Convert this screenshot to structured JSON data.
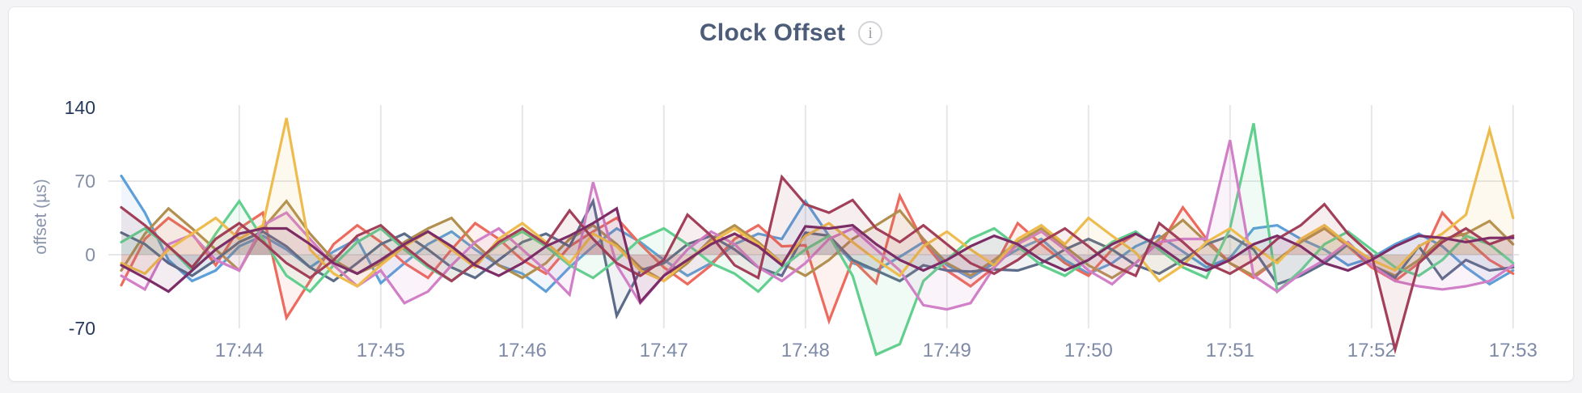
{
  "page": {
    "background": "#f4f4f6",
    "card_background": "#ffffff",
    "card_border": "#e7e7e9"
  },
  "header": {
    "title": "Clock Offset",
    "info_icon_glyph": "i"
  },
  "colors": {
    "title": "#4d5d79",
    "gridline": "#e7e7ea",
    "x_tick_label": "#7e8aa6",
    "y_tick_label": "#848fa6",
    "y_tick_label_emphasis": "#26395a",
    "axis_title": "#8a94aa",
    "info_icon_border": "#d2d4d8",
    "info_icon_text": "#9aa0a8"
  },
  "chart_data": {
    "type": "line",
    "title": "Clock Offset",
    "xlabel": "",
    "ylabel": "offset (µs)",
    "ylim": [
      -70,
      140
    ],
    "grid": true,
    "legend_position": "none",
    "x_start_time": "17:43:10",
    "x_step_seconds": 10,
    "x_ticks": [
      {
        "t": 50,
        "label": "17:44"
      },
      {
        "t": 110,
        "label": "17:45"
      },
      {
        "t": 170,
        "label": "17:46"
      },
      {
        "t": 230,
        "label": "17:47"
      },
      {
        "t": 290,
        "label": "17:48"
      },
      {
        "t": 350,
        "label": "17:49"
      },
      {
        "t": 410,
        "label": "17:50"
      },
      {
        "t": 470,
        "label": "17:51"
      },
      {
        "t": 530,
        "label": "17:52"
      },
      {
        "t": 590,
        "label": "17:53"
      }
    ],
    "y_ticks": [
      {
        "value": 140,
        "label": "140",
        "emphasis": true,
        "gridline": false
      },
      {
        "value": 70,
        "label": "70",
        "emphasis": false,
        "gridline": true
      },
      {
        "value": 0,
        "label": "0",
        "emphasis": false,
        "gridline": true
      },
      {
        "value": -70,
        "label": "-70",
        "emphasis": true,
        "gridline": false
      }
    ],
    "series": [
      {
        "name": "series-1-blue",
        "color": "#5d9fd8",
        "values": [
          75,
          40,
          -5,
          -25,
          -15,
          8,
          18,
          5,
          -12,
          3,
          15,
          -27,
          -8,
          10,
          22,
          5,
          -10,
          -18,
          -35,
          -12,
          8,
          25,
          12,
          -5,
          -20,
          -8,
          10,
          20,
          15,
          51,
          18,
          -8,
          -15,
          -2,
          12,
          -10,
          -22,
          -8,
          5,
          15,
          -5,
          -18,
          -8,
          8,
          18,
          3,
          -12,
          -3,
          25,
          28,
          15,
          5,
          -10,
          -3,
          10,
          20,
          8,
          -12,
          -28,
          -15
        ]
      },
      {
        "name": "series-2-salmon",
        "color": "#ec6a5e",
        "values": [
          -29,
          15,
          35,
          20,
          -10,
          25,
          40,
          -60,
          -25,
          10,
          28,
          12,
          -8,
          -22,
          5,
          30,
          15,
          -5,
          -18,
          8,
          22,
          35,
          10,
          -12,
          -28,
          -10,
          15,
          28,
          8,
          9,
          -63,
          -5,
          -27,
          56,
          12,
          -15,
          -30,
          -12,
          30,
          10,
          -8,
          -20,
          5,
          20,
          8,
          45,
          15,
          -8,
          -22,
          -5,
          12,
          25,
          8,
          -12,
          -25,
          -8,
          40,
          15,
          -5,
          -18
        ]
      },
      {
        "name": "series-3-khaki",
        "color": "#b18f4f",
        "values": [
          -15,
          20,
          44,
          25,
          5,
          -15,
          25,
          51,
          20,
          -5,
          -18,
          -8,
          12,
          25,
          35,
          10,
          -10,
          -22,
          -8,
          15,
          28,
          10,
          -12,
          -25,
          -8,
          15,
          28,
          12,
          -8,
          -20,
          -5,
          15,
          28,
          42,
          15,
          -8,
          -20,
          -5,
          12,
          25,
          8,
          -10,
          -22,
          -8,
          15,
          33,
          12,
          -8,
          -20,
          -5,
          12,
          25,
          10,
          -10,
          -20,
          -5,
          15,
          20,
          32,
          10
        ]
      },
      {
        "name": "series-4-slate",
        "color": "#5c6b88",
        "values": [
          21,
          10,
          -8,
          -20,
          -5,
          12,
          22,
          8,
          -12,
          -25,
          -8,
          10,
          20,
          5,
          -12,
          -22,
          -5,
          12,
          20,
          8,
          51,
          -58,
          -15,
          -8,
          10,
          18,
          5,
          -12,
          -20,
          21,
          18,
          -5,
          -15,
          -25,
          -10,
          -15,
          -16,
          -14,
          -15,
          -8,
          5,
          15,
          5,
          -10,
          -18,
          -5,
          10,
          18,
          5,
          -28,
          -20,
          -8,
          10,
          -10,
          -22,
          8,
          -23,
          -5,
          -15,
          -12
        ]
      },
      {
        "name": "series-5-green",
        "color": "#62cf8e",
        "values": [
          12,
          25,
          8,
          -15,
          20,
          51,
          15,
          -20,
          -35,
          -10,
          12,
          25,
          5,
          -12,
          -25,
          -8,
          10,
          22,
          8,
          -10,
          -22,
          -5,
          15,
          25,
          10,
          -8,
          -18,
          -35,
          -12,
          5,
          18,
          -20,
          -95,
          -85,
          -25,
          -5,
          15,
          25,
          8,
          -10,
          -20,
          -5,
          12,
          22,
          5,
          -12,
          -22,
          25,
          125,
          -35,
          -15,
          10,
          22,
          5,
          -12,
          -20,
          -5,
          18,
          10,
          -8
        ]
      },
      {
        "name": "series-6-orchid",
        "color": "#d17fc6",
        "values": [
          -20,
          -33,
          10,
          19,
          -5,
          -15,
          28,
          40,
          15,
          -10,
          -30,
          -15,
          -46,
          -35,
          -10,
          12,
          25,
          5,
          -15,
          -38,
          69,
          -10,
          -46,
          -20,
          5,
          22,
          10,
          -12,
          -25,
          -8,
          15,
          25,
          5,
          -15,
          -48,
          -52,
          -46,
          -12,
          10,
          22,
          5,
          -15,
          -28,
          -8,
          12,
          15,
          15,
          109,
          -20,
          -35,
          -18,
          -5,
          12,
          -10,
          -25,
          -30,
          -33,
          -30,
          -25,
          -10
        ]
      },
      {
        "name": "series-7-gold",
        "color": "#eebc4e",
        "values": [
          -8,
          -18,
          5,
          20,
          35,
          15,
          28,
          130,
          5,
          -18,
          -30,
          -10,
          8,
          22,
          5,
          -12,
          15,
          30,
          12,
          -8,
          20,
          8,
          -15,
          -25,
          -5,
          12,
          25,
          10,
          -8,
          18,
          30,
          12,
          -5,
          -20,
          8,
          22,
          5,
          -10,
          15,
          28,
          10,
          35,
          18,
          2,
          -25,
          -10,
          12,
          25,
          8,
          -8,
          15,
          28,
          10,
          -5,
          -15,
          8,
          20,
          38,
          119,
          35
        ]
      },
      {
        "name": "series-8-maroon",
        "color": "#a23f59",
        "values": [
          45,
          28,
          8,
          -12,
          15,
          30,
          12,
          -8,
          -22,
          -5,
          18,
          28,
          8,
          -10,
          -25,
          -8,
          12,
          25,
          10,
          42,
          15,
          -8,
          -20,
          -5,
          38,
          18,
          -10,
          -22,
          74,
          48,
          40,
          52,
          25,
          12,
          28,
          10,
          -8,
          -18,
          -5,
          12,
          25,
          8,
          -10,
          -20,
          30,
          12,
          -8,
          -18,
          -5,
          15,
          28,
          48,
          20,
          0,
          -90,
          -8,
          12,
          25,
          10,
          18
        ]
      },
      {
        "name": "series-9-plum",
        "color": "#7c2d66",
        "values": [
          -10,
          -22,
          -35,
          -15,
          5,
          20,
          25,
          25,
          10,
          -8,
          -18,
          -5,
          10,
          22,
          8,
          -10,
          -20,
          -8,
          8,
          18,
          30,
          44,
          -45,
          -20,
          -5,
          10,
          20,
          8,
          -10,
          27,
          25,
          28,
          10,
          -5,
          -15,
          -5,
          8,
          18,
          10,
          -5,
          -15,
          -5,
          10,
          20,
          8,
          -8,
          -15,
          -5,
          10,
          18,
          8,
          -8,
          -15,
          -5,
          8,
          18,
          16,
          12,
          16,
          16
        ]
      }
    ]
  }
}
